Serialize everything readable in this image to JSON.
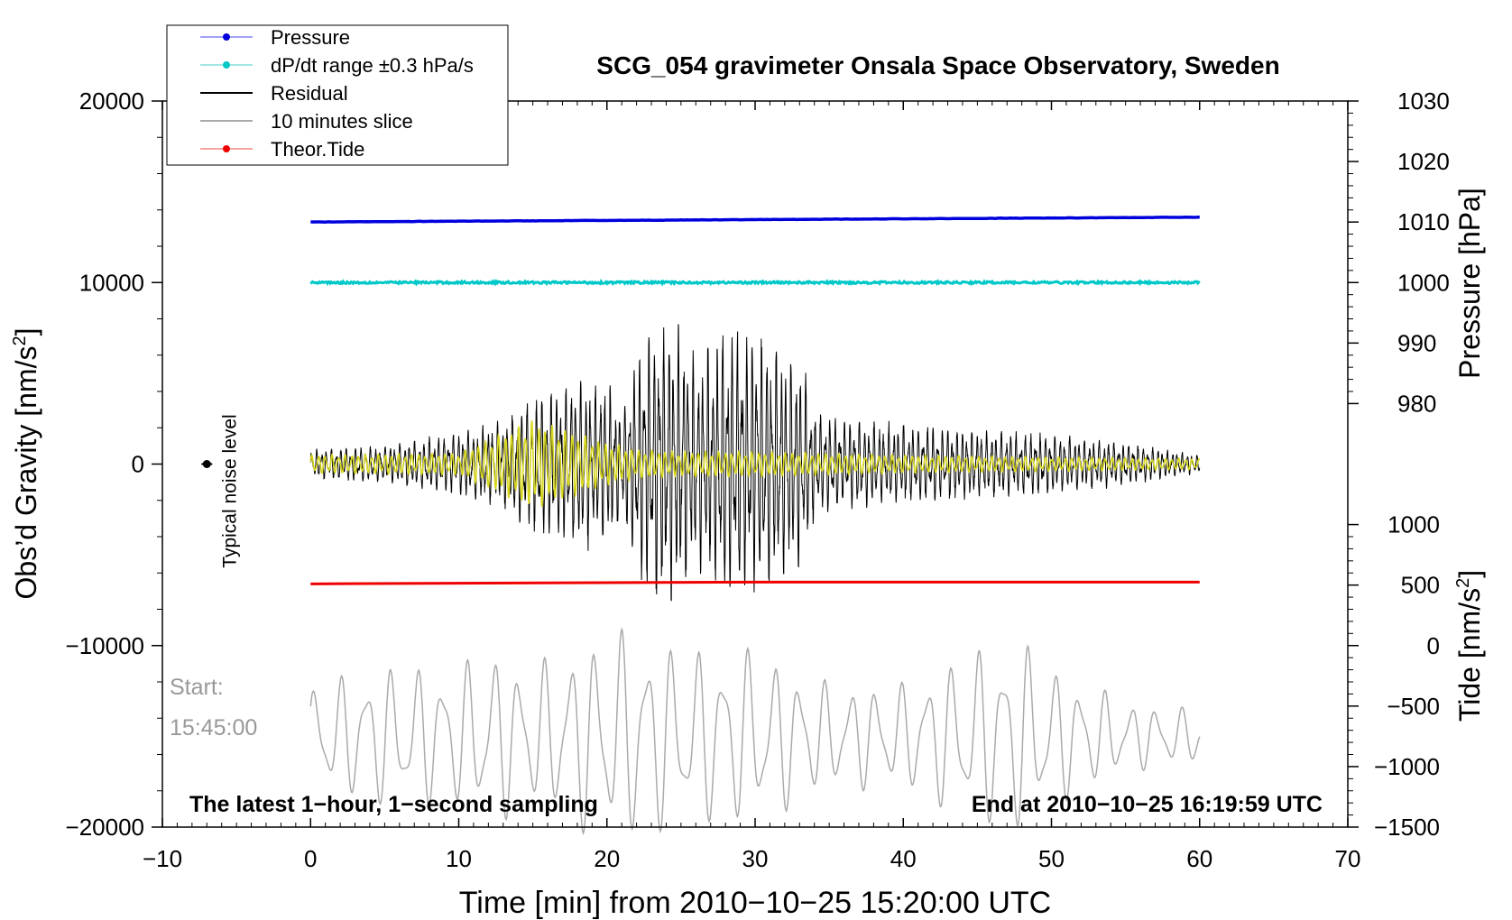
{
  "chart_data": {
    "type": "line",
    "title": "SCG_054 gravimeter Onsala Space Observatory, Sweden",
    "xlabel": "Time [min] from 2010−10−25 15:20:00 UTC",
    "ylabel_left": "Obs’d Gravity [nm/s²]",
    "ylabel_left_base": "Obs’d Gravity [nm/s",
    "ylabel_pressure": "Pressure [hPa]",
    "ylabel_tide_base": "Tide [nm/s",
    "unit_sup": "2",
    "unit_close": "]",
    "xlim": [
      -10,
      70
    ],
    "ylim": [
      -20000,
      20000
    ],
    "xticks": [
      -10,
      0,
      10,
      20,
      30,
      40,
      50,
      60,
      70
    ],
    "xtick_labels": [
      "−10",
      "0",
      "10",
      "20",
      "30",
      "40",
      "50",
      "60",
      "70"
    ],
    "yticks": [
      -20000,
      -10000,
      0,
      10000,
      20000
    ],
    "ytick_labels": [
      "−20000",
      "−10000",
      "0",
      "10000",
      "20000"
    ],
    "pressure_axis": {
      "ticks": [
        980,
        990,
        1000,
        1010,
        1020,
        1030
      ],
      "tick_labels": [
        "980",
        "990",
        "1000",
        "1010",
        "1020",
        "1030"
      ],
      "map_to_left": [
        [
          1000,
          10000
        ],
        [
          1030,
          20000
        ]
      ]
    },
    "tide_axis": {
      "ticks": [
        -1500,
        -1000,
        -500,
        0,
        500,
        1000
      ],
      "tick_labels": [
        "−1500",
        "−1000",
        "−500",
        "0",
        "500",
        "1000"
      ],
      "map_to_left": [
        [
          -1500,
          -20000
        ],
        [
          0,
          -10000
        ]
      ]
    },
    "legend_position": "top-left",
    "legend": [
      {
        "name": "Pressure",
        "color": "#0000dd",
        "marker": true
      },
      {
        "name": "dP/dt range ±0.3 hPa/s",
        "color": "#00c8c8",
        "marker": true
      },
      {
        "name": "Residual",
        "color": "#000000",
        "marker": false
      },
      {
        "name": "10 minutes slice",
        "color": "#aaaaaa",
        "marker": false
      },
      {
        "name": "Theor.Tide",
        "color": "#ee0000",
        "marker": true
      }
    ],
    "series": [
      {
        "name": "Pressure",
        "color": "#0000dd",
        "x_range": [
          0,
          60
        ],
        "unit": "hPa",
        "start": 1010.0,
        "end": 1010.8
      },
      {
        "name": "dP/dt range ±0.3 hPa/s",
        "color": "#00c8c8",
        "x_range": [
          0,
          60
        ],
        "unit": "hPa",
        "level": 1000.0
      },
      {
        "name": "Theor.Tide",
        "color": "#ee0000",
        "x_range": [
          0,
          60
        ],
        "unit": "nm/s²",
        "start": -6600,
        "end": -6500
      },
      {
        "name": "Residual",
        "color": "#000000",
        "x_range": [
          0,
          60
        ],
        "envelope_x": [
          0,
          5,
          10,
          13,
          15,
          17,
          20,
          21,
          22,
          23,
          24,
          25,
          26,
          28,
          30,
          32,
          33,
          34,
          36,
          40,
          45,
          50,
          55,
          60
        ],
        "envelope_amp": [
          800,
          1100,
          1800,
          2500,
          4000,
          4500,
          4800,
          3000,
          6000,
          8000,
          8300,
          7500,
          6000,
          8000,
          7500,
          6500,
          6300,
          3000,
          2500,
          2300,
          2000,
          1700,
          1200,
          500
        ]
      },
      {
        "name": "Filtered (yellow)",
        "color": "#d8d820",
        "x_range": [
          0,
          60
        ],
        "envelope_x": [
          0,
          10,
          15,
          17,
          20,
          22,
          25,
          30,
          35,
          40,
          50,
          60
        ],
        "envelope_amp": [
          500,
          600,
          2500,
          2000,
          1200,
          800,
          700,
          700,
          600,
          500,
          400,
          300
        ]
      },
      {
        "name": "10 minutes slice",
        "color": "#aaaaaa",
        "x_range": [
          0,
          60
        ],
        "center": -15000,
        "envelope_x": [
          0,
          5,
          10,
          12,
          15,
          20,
          22,
          25,
          30,
          35,
          40,
          45,
          48,
          50,
          55,
          60
        ],
        "envelope_amp": [
          3000,
          4000,
          4000,
          5000,
          4000,
          6000,
          6000,
          5000,
          5000,
          3000,
          3000,
          5000,
          5500,
          4000,
          2000,
          1500
        ]
      }
    ],
    "annotations": {
      "noise_label": "Typical noise level",
      "noise_x": -7,
      "noise_y": 0,
      "start_label": "Start:",
      "start_time": "15:45:00",
      "bottom_left": "The latest 1−hour, 1−second sampling",
      "bottom_right": "End at 2010−10−25 16:19:59 UTC"
    }
  }
}
